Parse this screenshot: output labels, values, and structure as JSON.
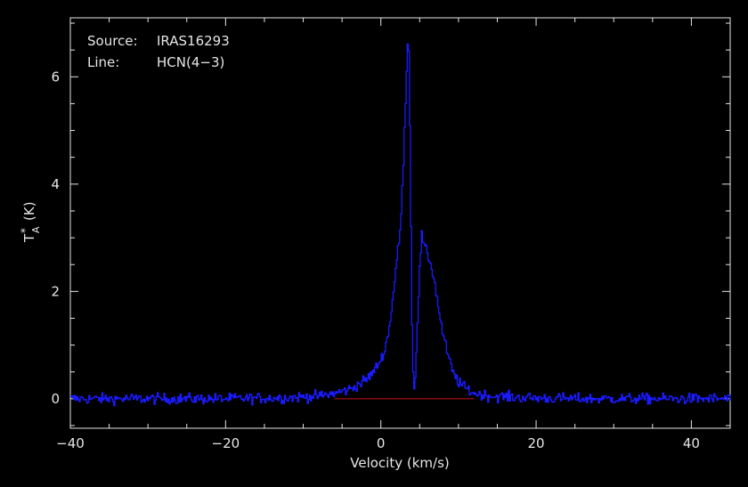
{
  "chart_data": {
    "type": "line",
    "annotations": {
      "source_label": "Source:",
      "source_value": "IRAS16293",
      "line_label": "Line:",
      "line_value": "HCN(4−3)"
    },
    "xlabel": "Velocity (km/s)",
    "ylabel_main": "T",
    "ylabel_super": "*",
    "ylabel_sub": "A",
    "ylabel_unit": "(K)",
    "xlim": [
      -40,
      45
    ],
    "ylim": [
      -0.55,
      7.1
    ],
    "xticks": [
      -40,
      -20,
      0,
      20,
      40
    ],
    "xtick_labels": [
      "−40",
      "−20",
      "0",
      "20",
      "40"
    ],
    "yticks": [
      0,
      2,
      4,
      6
    ],
    "ytick_labels": [
      "0",
      "2",
      "4",
      "6"
    ],
    "grid": false,
    "colors": {
      "spectrum": "#1a1aff",
      "baseline": "#cc1010",
      "axes": "#e6e6e6"
    },
    "baseline": {
      "y": 0,
      "x_range": [
        -6,
        12
      ]
    },
    "spectrum_profile": [
      [
        -40,
        0.0
      ],
      [
        -30,
        0.0
      ],
      [
        -20,
        0.0
      ],
      [
        -12,
        0.02
      ],
      [
        -8,
        0.05
      ],
      [
        -6,
        0.1
      ],
      [
        -4,
        0.18
      ],
      [
        -2,
        0.35
      ],
      [
        -1,
        0.5
      ],
      [
        0,
        0.75
      ],
      [
        0.5,
        0.95
      ],
      [
        1,
        1.3
      ],
      [
        1.5,
        1.9
      ],
      [
        2,
        2.6
      ],
      [
        2.4,
        3.05
      ],
      [
        2.8,
        4.2
      ],
      [
        3.1,
        5.5
      ],
      [
        3.4,
        6.7
      ],
      [
        3.6,
        6.3
      ],
      [
        3.8,
        3.5
      ],
      [
        4.0,
        0.9
      ],
      [
        4.2,
        0.1
      ],
      [
        4.4,
        0.5
      ],
      [
        4.7,
        1.6
      ],
      [
        5.0,
        2.6
      ],
      [
        5.2,
        3.05
      ],
      [
        5.5,
        2.85
      ],
      [
        5.9,
        2.7
      ],
      [
        6.3,
        2.55
      ],
      [
        6.7,
        2.3
      ],
      [
        7.2,
        1.85
      ],
      [
        7.8,
        1.3
      ],
      [
        8.5,
        0.85
      ],
      [
        9.2,
        0.5
      ],
      [
        10,
        0.3
      ],
      [
        11,
        0.18
      ],
      [
        12,
        0.1
      ],
      [
        14,
        0.05
      ],
      [
        18,
        0.02
      ],
      [
        25,
        0.0
      ],
      [
        35,
        0.0
      ],
      [
        45,
        0.0
      ]
    ],
    "noise_rms": 0.05
  }
}
